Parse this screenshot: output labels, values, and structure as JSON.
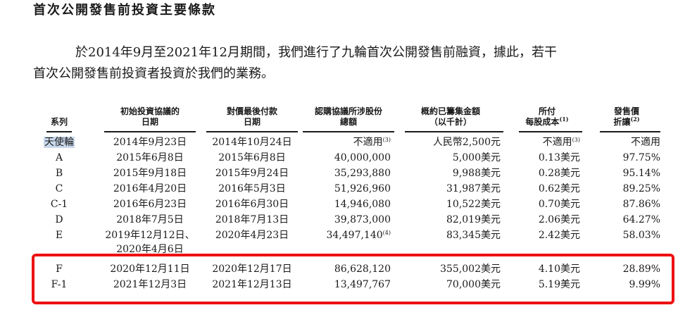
{
  "title": "首次公開發售前投資主要條款",
  "paragraph_line1": "於2014年9月至2021年12月期間，我們進行了九輪首次公開發售前融資，據此，若干",
  "paragraph_line2": "首次公開發售前投資者投資於我們的業務。",
  "headers": {
    "series": "系列",
    "d1_line1": "初始投資協議的",
    "d1_line2": "日期",
    "d2_line1": "對價最後付款",
    "d2_line2": "日期",
    "shares_line1": "認購協議所涉股份",
    "shares_line2": "總額",
    "amount_line1": "概約已籌集金額",
    "amount_line2": "（以千計）",
    "cost_line1": "所付",
    "cost_line2": "每股成本",
    "cost_note": "(1)",
    "disc_line1": "發售價",
    "disc_line2": "折讓",
    "disc_note": "(2)"
  },
  "rows": [
    {
      "series": "天使輪",
      "d1": "2014年9月23日",
      "d2": "2014年10月24日",
      "shares": "不適用",
      "shares_note": "(3)",
      "amount": "人民幣2,500元",
      "cost": "不適用",
      "cost_note": "(3)",
      "discount": "不適用"
    },
    {
      "series": "A",
      "d1": "2015年6月8日",
      "d2": "2015年6月8日",
      "shares": "40,000,000",
      "shares_note": "",
      "amount": "5,000美元",
      "cost": "0.13美元",
      "cost_note": "",
      "discount": "97.75%"
    },
    {
      "series": "B",
      "d1": "2015年9月18日",
      "d2": "2015年9月24日",
      "shares": "35,293,880",
      "shares_note": "",
      "amount": "9,988美元",
      "cost": "0.28美元",
      "cost_note": "",
      "discount": "95.14%"
    },
    {
      "series": "C",
      "d1": "2016年4月20日",
      "d2": "2016年5月3日",
      "shares": "51,926,960",
      "shares_note": "",
      "amount": "31,987美元",
      "cost": "0.62美元",
      "cost_note": "",
      "discount": "89.25%"
    },
    {
      "series": "C-1",
      "d1": "2016年6月23日",
      "d2": "2016年6月30日",
      "shares": "14,946,080",
      "shares_note": "",
      "amount": "10,522美元",
      "cost": "0.70美元",
      "cost_note": "",
      "discount": "87.86%"
    },
    {
      "series": "D",
      "d1": "2018年7月5日",
      "d2": "2018年7月13日",
      "shares": "39,873,000",
      "shares_note": "",
      "amount": "82,019美元",
      "cost": "2.06美元",
      "cost_note": "",
      "discount": "64.27%"
    },
    {
      "series": "E",
      "d1": "2019年12月12日、",
      "d2": "2020年4月23日",
      "shares": "34,497,140",
      "shares_note": "(4)",
      "amount": "83,345美元",
      "cost": "2.42美元",
      "cost_note": "",
      "discount": "58.03%"
    },
    {
      "series": "F",
      "d1": "2020年12月11日",
      "d2": "2020年12月17日",
      "shares": "86,628,120",
      "shares_note": "",
      "amount": "355,002美元",
      "cost": "4.10美元",
      "cost_note": "",
      "discount": "28.89%"
    },
    {
      "series": "F-1",
      "d1": "2021年12月3日",
      "d2": "2021年12月13日",
      "shares": "13,497,767",
      "shares_note": "",
      "amount": "70,000美元",
      "cost": "5.19美元",
      "cost_note": "",
      "discount": "9.99%"
    }
  ],
  "clipped_text": "2020年4月6日",
  "colors": {
    "highlight_box": "#ee1111",
    "selection": "#c9d8ec"
  }
}
